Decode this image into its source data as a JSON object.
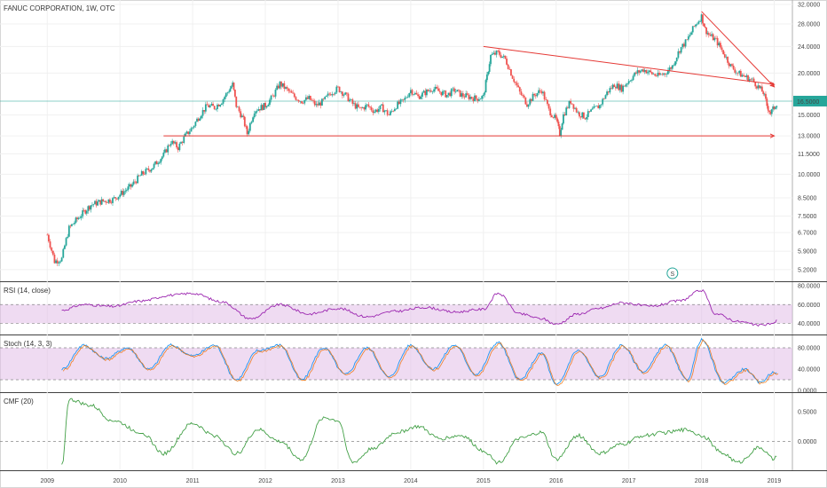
{
  "chart_data": {
    "type": "candlestick",
    "title": "FANUC CORPORATION, 1W, OTC",
    "x_axis": {
      "labels": [
        "2009",
        "2010",
        "2011",
        "2012",
        "2013",
        "2014",
        "2015",
        "2016",
        "2017",
        "2018",
        "2019"
      ]
    },
    "price_axis": {
      "scale": "log",
      "ticks": [
        "32.0000",
        "28.0000",
        "24.0000",
        "20.0000",
        "15.0000",
        "13.0000",
        "11.5000",
        "10.0000",
        "8.5000",
        "7.5000",
        "6.7000",
        "5.9000",
        "5.2000"
      ],
      "range": [
        4.8,
        33
      ]
    },
    "last_price": {
      "value": 16.5,
      "label": "16.5000",
      "color": "#26a69a"
    },
    "price_series": [
      {
        "x": 2009.0,
        "y": 6.6
      },
      {
        "x": 2009.1,
        "y": 5.5
      },
      {
        "x": 2009.2,
        "y": 5.6
      },
      {
        "x": 2009.3,
        "y": 6.9
      },
      {
        "x": 2009.45,
        "y": 7.5
      },
      {
        "x": 2009.6,
        "y": 8.1
      },
      {
        "x": 2009.75,
        "y": 8.3
      },
      {
        "x": 2009.9,
        "y": 8.4
      },
      {
        "x": 2010.0,
        "y": 8.7
      },
      {
        "x": 2010.15,
        "y": 9.2
      },
      {
        "x": 2010.3,
        "y": 10.0
      },
      {
        "x": 2010.45,
        "y": 10.5
      },
      {
        "x": 2010.6,
        "y": 11.4
      },
      {
        "x": 2010.7,
        "y": 12.5
      },
      {
        "x": 2010.8,
        "y": 12.0
      },
      {
        "x": 2010.9,
        "y": 13.0
      },
      {
        "x": 2011.0,
        "y": 13.8
      },
      {
        "x": 2011.1,
        "y": 15.0
      },
      {
        "x": 2011.2,
        "y": 16.0
      },
      {
        "x": 2011.3,
        "y": 15.8
      },
      {
        "x": 2011.4,
        "y": 16.5
      },
      {
        "x": 2011.5,
        "y": 17.8
      },
      {
        "x": 2011.55,
        "y": 18.5
      },
      {
        "x": 2011.6,
        "y": 16.0
      },
      {
        "x": 2011.7,
        "y": 14.5
      },
      {
        "x": 2011.75,
        "y": 13.2
      },
      {
        "x": 2011.85,
        "y": 15.5
      },
      {
        "x": 2012.0,
        "y": 16.0
      },
      {
        "x": 2012.1,
        "y": 17.0
      },
      {
        "x": 2012.2,
        "y": 18.6
      },
      {
        "x": 2012.3,
        "y": 17.8
      },
      {
        "x": 2012.4,
        "y": 17.0
      },
      {
        "x": 2012.5,
        "y": 16.5
      },
      {
        "x": 2012.6,
        "y": 16.8
      },
      {
        "x": 2012.7,
        "y": 16.0
      },
      {
        "x": 2012.8,
        "y": 16.5
      },
      {
        "x": 2012.9,
        "y": 17.5
      },
      {
        "x": 2013.0,
        "y": 18.0
      },
      {
        "x": 2013.1,
        "y": 17.2
      },
      {
        "x": 2013.2,
        "y": 16.2
      },
      {
        "x": 2013.3,
        "y": 15.6
      },
      {
        "x": 2013.4,
        "y": 16.0
      },
      {
        "x": 2013.5,
        "y": 15.4
      },
      {
        "x": 2013.6,
        "y": 15.8
      },
      {
        "x": 2013.7,
        "y": 15.0
      },
      {
        "x": 2013.8,
        "y": 16.0
      },
      {
        "x": 2013.9,
        "y": 16.5
      },
      {
        "x": 2014.0,
        "y": 17.8
      },
      {
        "x": 2014.1,
        "y": 17.0
      },
      {
        "x": 2014.2,
        "y": 17.5
      },
      {
        "x": 2014.3,
        "y": 18.0
      },
      {
        "x": 2014.4,
        "y": 17.6
      },
      {
        "x": 2014.5,
        "y": 17.2
      },
      {
        "x": 2014.6,
        "y": 17.8
      },
      {
        "x": 2014.7,
        "y": 17.2
      },
      {
        "x": 2014.8,
        "y": 17.0
      },
      {
        "x": 2014.9,
        "y": 16.8
      },
      {
        "x": 2015.0,
        "y": 17.0
      },
      {
        "x": 2015.05,
        "y": 19.5
      },
      {
        "x": 2015.1,
        "y": 22.5
      },
      {
        "x": 2015.2,
        "y": 23.0
      },
      {
        "x": 2015.3,
        "y": 22.0
      },
      {
        "x": 2015.4,
        "y": 19.5
      },
      {
        "x": 2015.5,
        "y": 17.5
      },
      {
        "x": 2015.6,
        "y": 16.2
      },
      {
        "x": 2015.7,
        "y": 17.2
      },
      {
        "x": 2015.8,
        "y": 17.8
      },
      {
        "x": 2015.9,
        "y": 15.5
      },
      {
        "x": 2016.0,
        "y": 14.5
      },
      {
        "x": 2016.05,
        "y": 13.2
      },
      {
        "x": 2016.1,
        "y": 15.0
      },
      {
        "x": 2016.2,
        "y": 16.5
      },
      {
        "x": 2016.3,
        "y": 15.2
      },
      {
        "x": 2016.4,
        "y": 14.8
      },
      {
        "x": 2016.5,
        "y": 15.5
      },
      {
        "x": 2016.6,
        "y": 16.0
      },
      {
        "x": 2016.7,
        "y": 17.5
      },
      {
        "x": 2016.8,
        "y": 18.5
      },
      {
        "x": 2016.9,
        "y": 18.0
      },
      {
        "x": 2017.0,
        "y": 19.0
      },
      {
        "x": 2017.1,
        "y": 20.0
      },
      {
        "x": 2017.2,
        "y": 20.5
      },
      {
        "x": 2017.3,
        "y": 20.0
      },
      {
        "x": 2017.4,
        "y": 19.6
      },
      {
        "x": 2017.5,
        "y": 20.0
      },
      {
        "x": 2017.6,
        "y": 21.0
      },
      {
        "x": 2017.7,
        "y": 23.5
      },
      {
        "x": 2017.8,
        "y": 25.0
      },
      {
        "x": 2017.9,
        "y": 27.5
      },
      {
        "x": 2018.0,
        "y": 29.5
      },
      {
        "x": 2018.05,
        "y": 27.0
      },
      {
        "x": 2018.1,
        "y": 26.0
      },
      {
        "x": 2018.2,
        "y": 25.0
      },
      {
        "x": 2018.3,
        "y": 23.0
      },
      {
        "x": 2018.4,
        "y": 21.0
      },
      {
        "x": 2018.5,
        "y": 20.0
      },
      {
        "x": 2018.6,
        "y": 19.5
      },
      {
        "x": 2018.7,
        "y": 19.0
      },
      {
        "x": 2018.8,
        "y": 18.0
      },
      {
        "x": 2018.85,
        "y": 17.5
      },
      {
        "x": 2018.9,
        "y": 16.0
      },
      {
        "x": 2018.95,
        "y": 15.2
      },
      {
        "x": 2019.0,
        "y": 15.8
      },
      {
        "x": 2019.05,
        "y": 16.5
      }
    ],
    "trendlines": [
      {
        "from": {
          "x": 2010.6,
          "y": 13.0
        },
        "to": {
          "x": 2019.0,
          "y": 13.0
        },
        "color": "#e53935"
      },
      {
        "from": {
          "x": 2015.0,
          "y": 24.0
        },
        "to": {
          "x": 2019.0,
          "y": 18.5
        },
        "color": "#e53935"
      },
      {
        "from": {
          "x": 2018.0,
          "y": 30.5
        },
        "to": {
          "x": 2019.0,
          "y": 18.2
        },
        "color": "#e53935"
      }
    ],
    "event_marker": {
      "x": 2017.6,
      "label": "S"
    },
    "indicators": [
      {
        "name": "RSI (14, close)",
        "ticks": [
          "80.0000",
          "60.0000",
          "40.0000"
        ],
        "range": [
          30,
          82
        ],
        "band": [
          40,
          60
        ],
        "band_color": "#e1bee7",
        "line_color": "#9c27b0",
        "values": [
          {
            "x": 2009.2,
            "y": 54
          },
          {
            "x": 2009.5,
            "y": 60
          },
          {
            "x": 2009.9,
            "y": 58
          },
          {
            "x": 2010.3,
            "y": 64
          },
          {
            "x": 2010.7,
            "y": 70
          },
          {
            "x": 2011.0,
            "y": 72
          },
          {
            "x": 2011.4,
            "y": 63
          },
          {
            "x": 2011.8,
            "y": 45
          },
          {
            "x": 2012.2,
            "y": 60
          },
          {
            "x": 2012.6,
            "y": 50
          },
          {
            "x": 2013.0,
            "y": 56
          },
          {
            "x": 2013.4,
            "y": 47
          },
          {
            "x": 2013.8,
            "y": 53
          },
          {
            "x": 2014.2,
            "y": 57
          },
          {
            "x": 2014.6,
            "y": 52
          },
          {
            "x": 2015.0,
            "y": 55
          },
          {
            "x": 2015.2,
            "y": 72
          },
          {
            "x": 2015.5,
            "y": 50
          },
          {
            "x": 2015.8,
            "y": 45
          },
          {
            "x": 2016.0,
            "y": 39
          },
          {
            "x": 2016.3,
            "y": 50
          },
          {
            "x": 2016.6,
            "y": 56
          },
          {
            "x": 2016.9,
            "y": 62
          },
          {
            "x": 2017.3,
            "y": 58
          },
          {
            "x": 2017.7,
            "y": 64
          },
          {
            "x": 2018.0,
            "y": 75
          },
          {
            "x": 2018.2,
            "y": 50
          },
          {
            "x": 2018.5,
            "y": 42
          },
          {
            "x": 2018.8,
            "y": 38
          },
          {
            "x": 2019.0,
            "y": 40
          },
          {
            "x": 2019.05,
            "y": 44
          }
        ]
      },
      {
        "name": "Stoch (14, 3, 3)",
        "ticks": [
          "80.0000",
          "40.0000",
          "0.0000"
        ],
        "range": [
          0,
          100
        ],
        "band": [
          20,
          80
        ],
        "band_color": "#e1bee7",
        "line_color": "#2196f3",
        "line2_color": "#ef6c00",
        "values": [
          {
            "x": 2009.2,
            "y": 40
          },
          {
            "x": 2009.5,
            "y": 85
          },
          {
            "x": 2009.8,
            "y": 60
          },
          {
            "x": 2010.1,
            "y": 80
          },
          {
            "x": 2010.4,
            "y": 40
          },
          {
            "x": 2010.7,
            "y": 85
          },
          {
            "x": 2011.0,
            "y": 65
          },
          {
            "x": 2011.3,
            "y": 85
          },
          {
            "x": 2011.6,
            "y": 20
          },
          {
            "x": 2011.9,
            "y": 75
          },
          {
            "x": 2012.2,
            "y": 85
          },
          {
            "x": 2012.5,
            "y": 20
          },
          {
            "x": 2012.8,
            "y": 80
          },
          {
            "x": 2013.1,
            "y": 30
          },
          {
            "x": 2013.4,
            "y": 80
          },
          {
            "x": 2013.7,
            "y": 25
          },
          {
            "x": 2014.0,
            "y": 85
          },
          {
            "x": 2014.3,
            "y": 40
          },
          {
            "x": 2014.6,
            "y": 85
          },
          {
            "x": 2014.9,
            "y": 30
          },
          {
            "x": 2015.2,
            "y": 90
          },
          {
            "x": 2015.5,
            "y": 20
          },
          {
            "x": 2015.8,
            "y": 70
          },
          {
            "x": 2016.0,
            "y": 10
          },
          {
            "x": 2016.3,
            "y": 75
          },
          {
            "x": 2016.6,
            "y": 25
          },
          {
            "x": 2016.9,
            "y": 85
          },
          {
            "x": 2017.2,
            "y": 35
          },
          {
            "x": 2017.5,
            "y": 85
          },
          {
            "x": 2017.8,
            "y": 20
          },
          {
            "x": 2018.0,
            "y": 95
          },
          {
            "x": 2018.3,
            "y": 15
          },
          {
            "x": 2018.6,
            "y": 40
          },
          {
            "x": 2018.8,
            "y": 15
          },
          {
            "x": 2019.0,
            "y": 35
          },
          {
            "x": 2019.05,
            "y": 30
          }
        ]
      },
      {
        "name": "CMF (20)",
        "ticks": [
          "0.5000",
          "0.0000"
        ],
        "range": [
          -0.45,
          0.78
        ],
        "zero": 0,
        "line_color": "#43a047",
        "values": [
          {
            "x": 2009.2,
            "y": -0.4
          },
          {
            "x": 2009.3,
            "y": 0.7
          },
          {
            "x": 2009.6,
            "y": 0.6
          },
          {
            "x": 2009.9,
            "y": 0.35
          },
          {
            "x": 2010.3,
            "y": 0.15
          },
          {
            "x": 2010.6,
            "y": -0.2
          },
          {
            "x": 2011.0,
            "y": 0.3
          },
          {
            "x": 2011.3,
            "y": 0.1
          },
          {
            "x": 2011.6,
            "y": -0.2
          },
          {
            "x": 2011.9,
            "y": 0.2
          },
          {
            "x": 2012.2,
            "y": 0.0
          },
          {
            "x": 2012.5,
            "y": -0.3
          },
          {
            "x": 2012.8,
            "y": 0.4
          },
          {
            "x": 2013.0,
            "y": 0.35
          },
          {
            "x": 2013.2,
            "y": -0.35
          },
          {
            "x": 2013.5,
            "y": -0.1
          },
          {
            "x": 2013.8,
            "y": 0.15
          },
          {
            "x": 2014.1,
            "y": 0.25
          },
          {
            "x": 2014.4,
            "y": 0.05
          },
          {
            "x": 2014.7,
            "y": 0.1
          },
          {
            "x": 2015.0,
            "y": -0.15
          },
          {
            "x": 2015.2,
            "y": -0.35
          },
          {
            "x": 2015.5,
            "y": 0.05
          },
          {
            "x": 2015.8,
            "y": 0.15
          },
          {
            "x": 2016.0,
            "y": -0.3
          },
          {
            "x": 2016.3,
            "y": 0.1
          },
          {
            "x": 2016.6,
            "y": -0.2
          },
          {
            "x": 2016.9,
            "y": -0.05
          },
          {
            "x": 2017.2,
            "y": 0.1
          },
          {
            "x": 2017.5,
            "y": 0.15
          },
          {
            "x": 2017.8,
            "y": 0.2
          },
          {
            "x": 2018.0,
            "y": 0.1
          },
          {
            "x": 2018.3,
            "y": -0.2
          },
          {
            "x": 2018.5,
            "y": -0.35
          },
          {
            "x": 2018.8,
            "y": -0.1
          },
          {
            "x": 2019.0,
            "y": -0.3
          },
          {
            "x": 2019.05,
            "y": -0.2
          }
        ]
      }
    ]
  }
}
